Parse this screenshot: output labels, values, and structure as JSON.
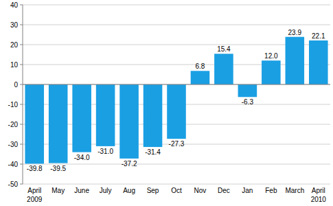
{
  "chart_data": {
    "type": "bar",
    "categories": [
      "April",
      "May",
      "June",
      "July",
      "Aug",
      "Sep",
      "Oct",
      "Nov",
      "Dec",
      "Jan",
      "Feb",
      "March",
      "April"
    ],
    "values": [
      -39.8,
      -39.5,
      -34.0,
      -31.0,
      -37.2,
      -31.4,
      -27.3,
      6.8,
      15.4,
      -6.3,
      12.0,
      23.9,
      22.1
    ],
    "value_labels": [
      "-39.8",
      "-39.5",
      "-34.0",
      "-31.0",
      "-37.2",
      "-31.4",
      "-27.3",
      "6.8",
      "15.4",
      "-6.3",
      "12.0",
      "23.9",
      "22.1"
    ],
    "color": "#1a9fe3",
    "ylim": [
      -50,
      40
    ],
    "yticks": [
      -50,
      -40,
      -30,
      -20,
      -10,
      0,
      10,
      20,
      30,
      40
    ],
    "grid": true,
    "data_labels": true,
    "annotations": [
      {
        "text": "2009",
        "at": 0
      },
      {
        "text": "2010",
        "at": 12
      }
    ]
  }
}
